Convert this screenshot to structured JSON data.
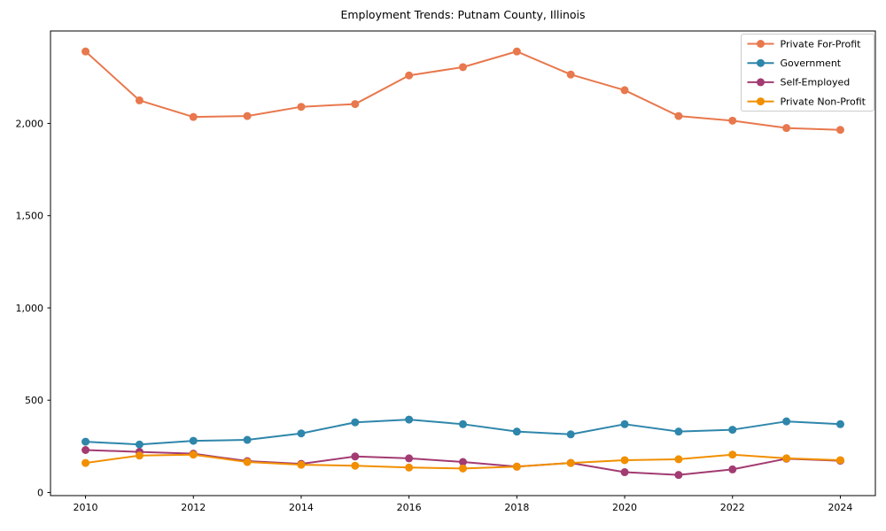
{
  "chart_data": {
    "type": "line",
    "title": "Employment Trends: Putnam County, Illinois",
    "xlabel": "",
    "ylabel": "",
    "x": [
      2010,
      2011,
      2012,
      2013,
      2014,
      2015,
      2016,
      2017,
      2018,
      2019,
      2020,
      2021,
      2022,
      2023,
      2024
    ],
    "x_tick_labels": [
      "2010",
      "2012",
      "2014",
      "2016",
      "2018",
      "2020",
      "2022",
      "2024"
    ],
    "x_ticks": [
      2010,
      2012,
      2014,
      2016,
      2018,
      2020,
      2022,
      2024
    ],
    "y_ticks": [
      0,
      500,
      1000,
      1500,
      2000
    ],
    "y_tick_labels": [
      "0",
      "500",
      "1,000",
      "1,500",
      "2,000"
    ],
    "ylim": [
      0,
      2500
    ],
    "grid": false,
    "legend_position": "upper right",
    "series": [
      {
        "name": "Private For-Profit",
        "color": "#E8784D",
        "values": [
          2390,
          2125,
          2035,
          2040,
          2090,
          2105,
          2260,
          2305,
          2390,
          2265,
          2180,
          2040,
          2015,
          1975,
          1965
        ]
      },
      {
        "name": "Government",
        "color": "#2E86AB",
        "values": [
          275,
          260,
          280,
          285,
          320,
          380,
          395,
          370,
          330,
          315,
          370,
          330,
          340,
          385,
          370
        ]
      },
      {
        "name": "Self-Employed",
        "color": "#A23B72",
        "values": [
          230,
          220,
          210,
          170,
          155,
          195,
          185,
          165,
          140,
          160,
          110,
          95,
          125,
          183,
          172
        ]
      },
      {
        "name": "Private Non-Profit",
        "color": "#F18F01",
        "values": [
          160,
          200,
          205,
          165,
          150,
          145,
          135,
          130,
          140,
          160,
          175,
          180,
          205,
          185,
          175
        ]
      }
    ],
    "colors": {
      "axes": "#000000",
      "background": "#ffffff",
      "legend_border": "#cccccc"
    }
  }
}
